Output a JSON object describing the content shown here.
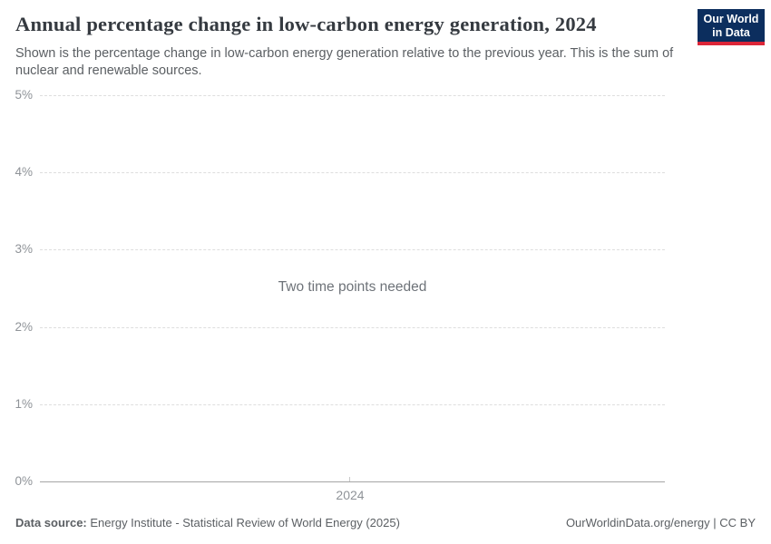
{
  "header": {
    "title": "Annual percentage change in low-carbon energy generation, 2024",
    "subtitle": "Shown is the percentage change in low-carbon energy generation relative to the previous year. This is the sum of nuclear and renewable sources.",
    "logo": {
      "line1": "Our World",
      "line2": "in Data"
    }
  },
  "chart_data": {
    "type": "line",
    "title": "Annual percentage change in low-carbon energy generation, 2024",
    "message": "Two time points needed",
    "series": [],
    "x_ticks": [
      "2024"
    ],
    "y_ticks": [
      "0%",
      "1%",
      "2%",
      "3%",
      "4%",
      "5%"
    ],
    "ylim": [
      0,
      5
    ],
    "xlabel": "",
    "ylabel": "",
    "grid": "horizontal-dashed",
    "legend": "none"
  },
  "colors": {
    "accent_navy": "#0c2e5e",
    "accent_red": "#dc2638",
    "title_text": "#353a40",
    "subtitle_text": "#5b5f63",
    "axis_text": "#8f9398",
    "gridline": "#dedede",
    "axis_line": "#a5a5a5",
    "message_text": "#6e7379",
    "footer_text": "#5b5f63"
  },
  "footer": {
    "datasource_label": "Data source:",
    "datasource_value": "Energy Institute - Statistical Review of World Energy (2025)",
    "attribution": "OurWorldinData.org/energy | CC BY"
  }
}
